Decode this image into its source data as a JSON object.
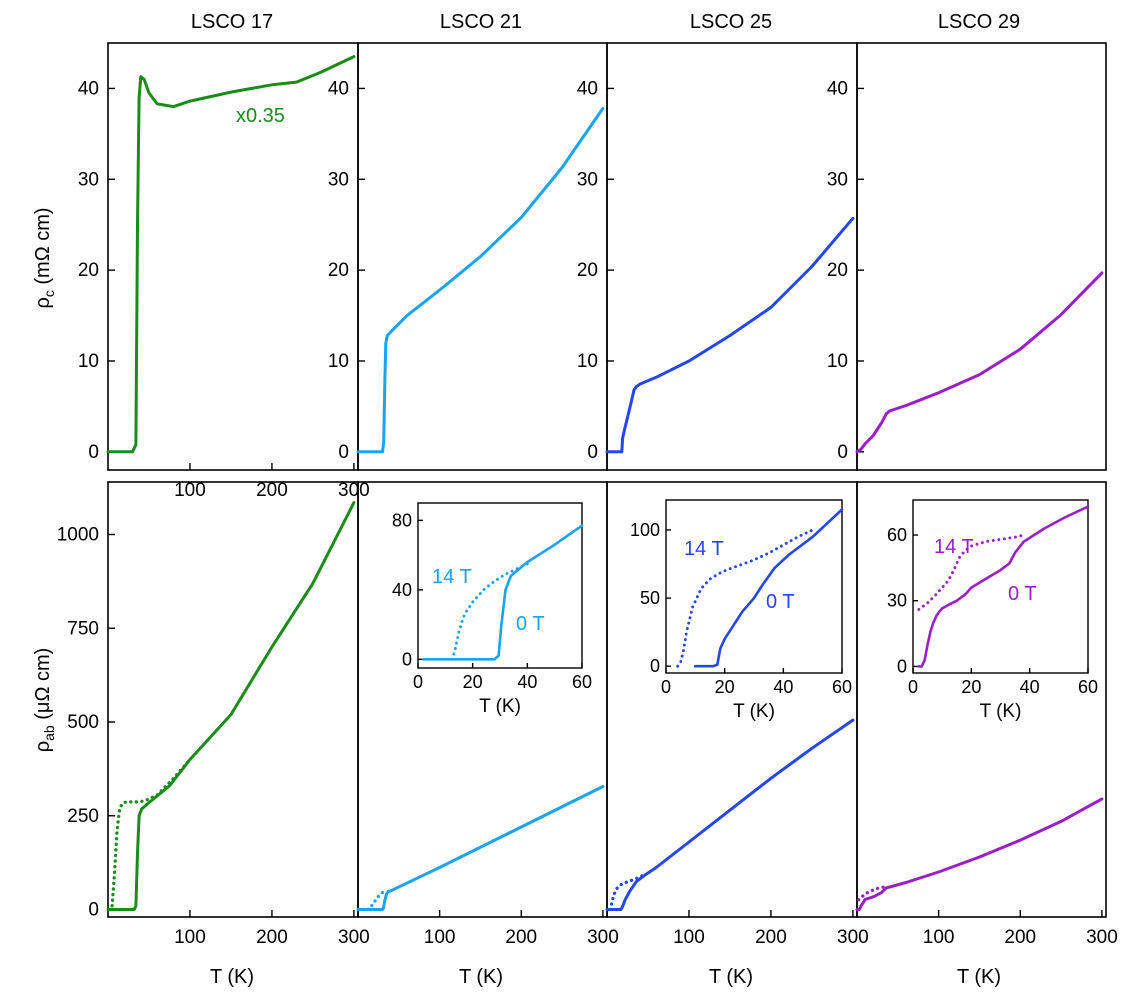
{
  "figure": {
    "columns": [
      "LSCO 17",
      "LSCO 21",
      "LSCO 25",
      "LSCO 29"
    ],
    "x_label": "T (K)",
    "top_y_label": {
      "main": "ρ",
      "sub": "c",
      "rest": " (mΩ cm)"
    },
    "bottom_y_label": {
      "main": "ρ",
      "sub": "ab",
      "rest": " (μΩ cm)"
    },
    "colors": {
      "LSCO 17": "#1a8c1a",
      "LSCO 21": "#1aa3ee",
      "LSCO 25": "#2546e8",
      "LSCO 29": "#9a1fc9"
    },
    "inset_field_labels": {
      "high": "14 T",
      "zero": "0 T"
    },
    "lsco17_scale_label": "x0.35"
  },
  "chart_data": [
    {
      "type": "line",
      "panel": "rho_c",
      "sample": "LSCO 17",
      "xlim": [
        0,
        305
      ],
      "ylim": [
        -2,
        45
      ],
      "x_ticks": [
        100,
        200,
        300
      ],
      "y_ticks": [
        0,
        10,
        20,
        30,
        40
      ],
      "annotation": "x0.35",
      "series": [
        {
          "style": "solid",
          "x": [
            0,
            30,
            34,
            36,
            38,
            40,
            44,
            50,
            60,
            80,
            100,
            150,
            200,
            230,
            260,
            300
          ],
          "y": [
            0,
            0,
            0.8,
            25,
            39,
            41.3,
            41,
            39.5,
            38.3,
            38,
            38.6,
            39.6,
            40.4,
            40.7,
            41.8,
            43.5
          ]
        }
      ]
    },
    {
      "type": "line",
      "panel": "rho_c",
      "sample": "LSCO 21",
      "xlim": [
        0,
        305
      ],
      "ylim": [
        -2,
        45
      ],
      "x_ticks": [],
      "y_ticks": [
        0,
        10,
        20,
        30,
        40
      ],
      "series": [
        {
          "style": "solid",
          "x": [
            0,
            30,
            31.5,
            33,
            34,
            36,
            40,
            60,
            100,
            150,
            200,
            250,
            300
          ],
          "y": [
            0,
            0,
            1,
            8,
            12,
            12.8,
            13.2,
            15,
            17.8,
            21.5,
            25.8,
            31.3,
            37.8
          ]
        }
      ]
    },
    {
      "type": "line",
      "panel": "rho_c",
      "sample": "LSCO 25",
      "xlim": [
        0,
        305
      ],
      "ylim": [
        -2,
        45
      ],
      "x_ticks": [],
      "y_ticks": [
        0,
        10,
        20,
        30,
        40
      ],
      "series": [
        {
          "style": "solid",
          "x": [
            0,
            18,
            19,
            21,
            27,
            33,
            36,
            38,
            40,
            60,
            100,
            150,
            200,
            250,
            300
          ],
          "y": [
            0,
            0,
            1.5,
            2.3,
            4.5,
            6.8,
            7.2,
            7.3,
            7.45,
            8.2,
            10,
            12.8,
            15.9,
            20.4,
            25.7
          ]
        }
      ]
    },
    {
      "type": "line",
      "panel": "rho_c",
      "sample": "LSCO 29",
      "xlim": [
        0,
        305
      ],
      "ylim": [
        -2,
        45
      ],
      "x_ticks": [],
      "y_ticks": [
        0,
        10,
        20,
        30,
        40
      ],
      "series": [
        {
          "style": "solid",
          "x": [
            0,
            5,
            10,
            20,
            30,
            36,
            40,
            60,
            100,
            150,
            200,
            250,
            300
          ],
          "y": [
            0,
            0.3,
            0.9,
            1.8,
            3.2,
            4.2,
            4.5,
            5.1,
            6.5,
            8.5,
            11.3,
            15.1,
            19.7
          ]
        }
      ]
    },
    {
      "type": "line",
      "panel": "rho_ab",
      "sample": "LSCO 17",
      "xlim": [
        0,
        305
      ],
      "ylim": [
        -20,
        1140
      ],
      "x_ticks": [
        100,
        200,
        300
      ],
      "y_ticks": [
        0,
        250,
        500,
        750,
        1000
      ],
      "series": [
        {
          "field": "0 T",
          "style": "solid",
          "x": [
            0,
            32,
            34,
            36,
            38,
            41,
            50,
            75,
            100,
            150,
            200,
            250,
            300
          ],
          "y": [
            0,
            0,
            10,
            150,
            250,
            268,
            285,
            330,
            400,
            520,
            700,
            870,
            1085
          ]
        },
        {
          "field": "14 T",
          "style": "dotted",
          "x": [
            5,
            8,
            11,
            14,
            17,
            22,
            30,
            38,
            45,
            60,
            80,
            100
          ],
          "y": [
            10,
            100,
            210,
            265,
            282,
            287,
            287,
            287,
            290,
            305,
            350,
            400
          ]
        }
      ]
    },
    {
      "type": "line",
      "panel": "rho_ab",
      "sample": "LSCO 21",
      "xlim": [
        0,
        305
      ],
      "ylim": [
        -20,
        1140
      ],
      "x_ticks": [
        100,
        200,
        300
      ],
      "y_ticks": [],
      "series": [
        {
          "field": "0 T",
          "style": "solid",
          "x": [
            0,
            30,
            31,
            33,
            35,
            37,
            40,
            100,
            200,
            300
          ],
          "y": [
            0,
            0,
            3,
            25,
            42,
            48,
            50,
            112,
            220,
            328
          ]
        },
        {
          "field": "14 T",
          "style": "dotted",
          "x": [
            12,
            16,
            20,
            25,
            30,
            35
          ],
          "y": [
            0,
            8,
            20,
            35,
            45,
            50
          ]
        }
      ],
      "inset": {
        "xlim": [
          0,
          60
        ],
        "ylim": [
          -5,
          90
        ],
        "x_ticks": [
          0,
          20,
          40,
          60
        ],
        "y_ticks": [
          0,
          40,
          80
        ],
        "series": [
          {
            "field": "0 T",
            "style": "solid",
            "x": [
              2,
              10,
              20,
              28,
              29.5,
              30.5,
              32,
              34,
              40,
              50,
              60
            ],
            "y": [
              0,
              0,
              0,
              0,
              2,
              20,
              40,
              48,
              56,
              66,
              77
            ]
          },
          {
            "field": "14 T",
            "style": "dotted",
            "x": [
              12.5,
              13.5,
              15,
              17,
              20,
              24,
              28,
              32,
              36,
              40
            ],
            "y": [
              0,
              5,
              16,
              26,
              33,
              40,
              45,
              49,
              52,
              55
            ]
          }
        ]
      }
    },
    {
      "type": "line",
      "panel": "rho_ab",
      "sample": "LSCO 25",
      "xlim": [
        0,
        305
      ],
      "ylim": [
        -20,
        1140
      ],
      "x_ticks": [
        100,
        200,
        300
      ],
      "y_ticks": [],
      "series": [
        {
          "field": "0 T",
          "style": "solid",
          "x": [
            0,
            17,
            19,
            22,
            28,
            36,
            45,
            60,
            100,
            150,
            200,
            250,
            300
          ],
          "y": [
            0,
            0,
            8,
            25,
            50,
            75,
            90,
            112,
            180,
            265,
            350,
            430,
            505
          ]
        },
        {
          "field": "14 T",
          "style": "dotted",
          "x": [
            4,
            6,
            8,
            12,
            18,
            25,
            35,
            45
          ],
          "y": [
            0,
            18,
            38,
            56,
            68,
            74,
            82,
            92
          ]
        }
      ],
      "inset": {
        "xlim": [
          0,
          60
        ],
        "ylim": [
          -5,
          122
        ],
        "x_ticks": [
          0,
          20,
          40,
          60
        ],
        "y_ticks": [
          0,
          50,
          100
        ],
        "series": [
          {
            "field": "0 T",
            "style": "solid",
            "x": [
              10,
              16,
              17.5,
              18.5,
              20,
              23,
              26,
              30,
              33,
              37,
              42,
              50,
              60
            ],
            "y": [
              0,
              0,
              1,
              13,
              20,
              30,
              40,
              50,
              60,
              72,
              82,
              95,
              115
            ]
          },
          {
            "field": "14 T",
            "style": "dotted",
            "x": [
              4,
              5,
              6,
              7,
              9,
              12,
              15,
              18,
              21,
              25,
              30,
              35,
              40,
              45,
              50
            ],
            "y": [
              0,
              3,
              12,
              25,
              43,
              57,
              64,
              68,
              71,
              74,
              78,
              83,
              89,
              95,
              100
            ]
          }
        ]
      }
    },
    {
      "type": "line",
      "panel": "rho_ab",
      "sample": "LSCO 29",
      "xlim": [
        0,
        305
      ],
      "ylim": [
        -20,
        1140
      ],
      "x_ticks": [
        100,
        200,
        300
      ],
      "y_ticks": [],
      "series": [
        {
          "field": "0 T",
          "style": "solid",
          "x": [
            0,
            3,
            5,
            10,
            20,
            30,
            36,
            40,
            60,
            100,
            150,
            200,
            250,
            300
          ],
          "y": [
            0,
            0,
            10,
            27,
            34,
            45,
            58,
            60,
            72,
            100,
            140,
            185,
            235,
            295
          ]
        },
        {
          "field": "14 T",
          "style": "dotted",
          "x": [
            2,
            8,
            15,
            25,
            33
          ],
          "y": [
            26,
            38,
            48,
            56,
            60
          ]
        }
      ],
      "inset": {
        "xlim": [
          0,
          60
        ],
        "ylim": [
          -3,
          76
        ],
        "x_ticks": [
          0,
          20,
          40,
          60
        ],
        "y_ticks": [
          0,
          30,
          60
        ],
        "series": [
          {
            "field": "0 T",
            "style": "solid",
            "x": [
              2,
              3,
              4,
              5,
              6,
              7,
              8,
              9,
              10,
              12,
              15,
              18,
              20,
              25,
              30,
              33,
              35,
              38,
              45,
              52,
              60
            ],
            "y": [
              0,
              0,
              3,
              10,
              16,
              20,
              23,
              25,
              26.5,
              28,
              30,
              33,
              36,
              40,
              44,
              47,
              52,
              57,
              63,
              68,
              73
            ]
          },
          {
            "field": "14 T",
            "style": "dotted",
            "x": [
              2,
              5,
              8,
              10,
              12,
              14,
              16,
              18,
              20,
              25,
              30,
              35,
              38
            ],
            "y": [
              26,
              29,
              33,
              36,
              39,
              44,
              50,
              53,
              55,
              57,
              58,
              59,
              60
            ]
          }
        ]
      }
    }
  ]
}
